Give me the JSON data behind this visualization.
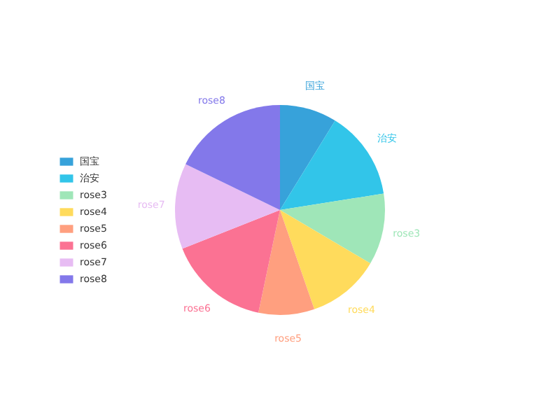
{
  "chart_data": {
    "type": "pie",
    "categories": [
      "国宝",
      "治安",
      "rose3",
      "rose4",
      "rose5",
      "rose6",
      "rose7",
      "rose8"
    ],
    "values": [
      8.8,
      13.7,
      11.0,
      11.2,
      8.6,
      15.7,
      13.2,
      17.8
    ],
    "colors": [
      "#37a2da",
      "#32c5e9",
      "#9fe6b8",
      "#ffdb5c",
      "#ff9f7f",
      "#fb7293",
      "#e7bcf3",
      "#8378ea"
    ],
    "legend": "left"
  }
}
